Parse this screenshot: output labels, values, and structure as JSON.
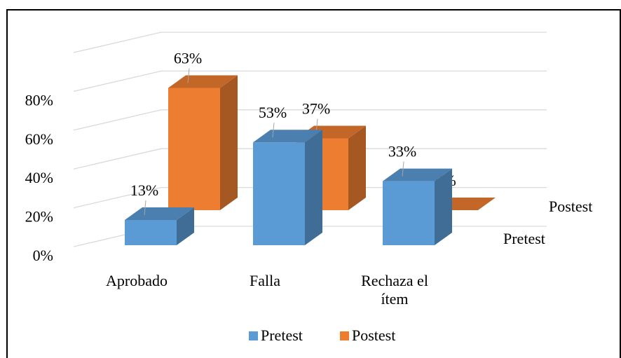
{
  "chart_data": {
    "type": "bar3d",
    "categories": [
      "Aprobado",
      "Falla",
      "Rechaza el ítem"
    ],
    "series": [
      {
        "name": "Pretest",
        "color": "#5b9bd5",
        "values": [
          13,
          53,
          33
        ],
        "value_labels": [
          "13%",
          "53%",
          "33%"
        ]
      },
      {
        "name": "Postest",
        "color": "#ed7d31",
        "values": [
          63,
          37,
          0
        ],
        "value_labels": [
          "63%",
          "37%",
          "0%"
        ]
      }
    ],
    "ylim": [
      0,
      100
    ],
    "yticks": [
      {
        "value": 0,
        "label": "0%"
      },
      {
        "value": 20,
        "label": "20%"
      },
      {
        "value": 40,
        "label": "40%"
      },
      {
        "value": 60,
        "label": "60%"
      },
      {
        "value": 80,
        "label": "80%"
      }
    ],
    "grid": true,
    "legend": "bottom"
  }
}
